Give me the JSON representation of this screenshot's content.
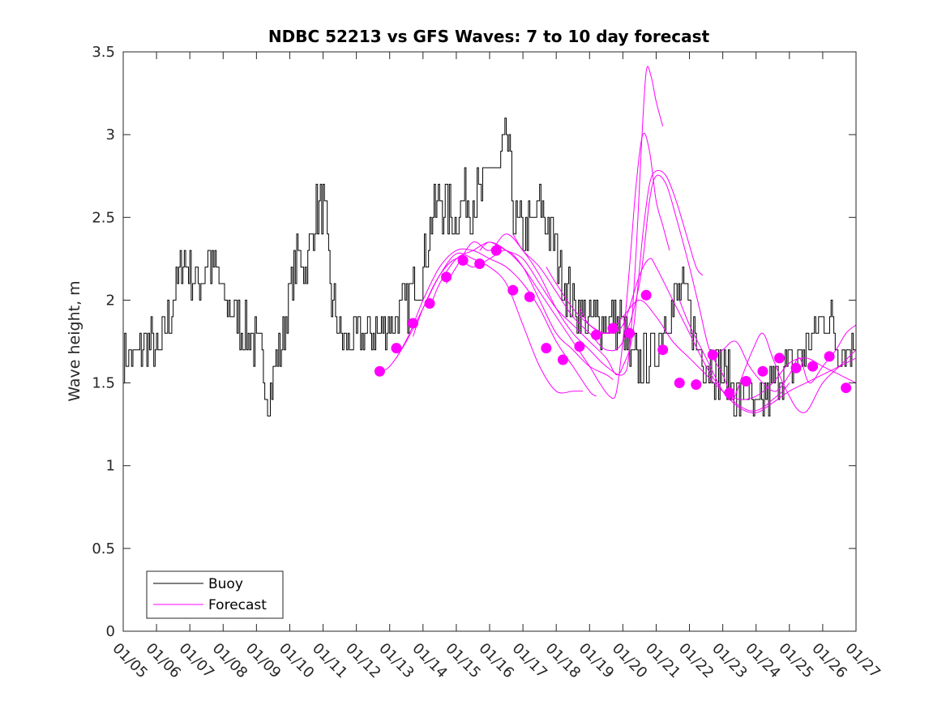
{
  "chart_data": {
    "type": "line",
    "title": "NDBC 52213 vs GFS Waves: 7 to 10 day forecast",
    "xlabel": "",
    "ylabel": "Wave height, m",
    "xlim": [
      0,
      22
    ],
    "ylim": [
      0,
      3.5
    ],
    "x_ticks": [
      "01/05",
      "01/06",
      "01/07",
      "01/08",
      "01/09",
      "01/10",
      "01/11",
      "01/12",
      "01/13",
      "01/14",
      "01/15",
      "01/16",
      "01/17",
      "01/18",
      "01/19",
      "01/20",
      "01/21",
      "01/22",
      "01/23",
      "01/24",
      "01/25",
      "01/26",
      "01/27"
    ],
    "y_ticks": [
      0,
      0.5,
      1,
      1.5,
      2,
      2.5,
      3,
      3.5
    ],
    "y_tick_labels": [
      "0",
      "0.5",
      "1",
      "1.5",
      "2",
      "2.5",
      "3",
      "3.5"
    ],
    "colors": {
      "buoy": "#000000",
      "forecast": "#ff00ff"
    },
    "legend": {
      "position": "bottom-left",
      "entries": [
        {
          "label": "Buoy",
          "color": "#000000"
        },
        {
          "label": "Forecast",
          "color": "#ff00ff"
        }
      ]
    },
    "buoy_keypoints": [
      [
        0.0,
        1.7
      ],
      [
        0.25,
        1.65
      ],
      [
        0.5,
        1.7
      ],
      [
        0.75,
        1.75
      ],
      [
        1.0,
        1.65
      ],
      [
        1.25,
        1.8
      ],
      [
        1.5,
        2.0
      ],
      [
        1.75,
        2.25
      ],
      [
        2.0,
        2.2
      ],
      [
        2.25,
        2.05
      ],
      [
        2.5,
        2.25
      ],
      [
        2.75,
        2.2
      ],
      [
        3.0,
        2.0
      ],
      [
        3.25,
        1.95
      ],
      [
        3.5,
        1.85
      ],
      [
        3.75,
        1.8
      ],
      [
        4.0,
        1.7
      ],
      [
        4.2,
        1.6
      ],
      [
        4.35,
        1.45
      ],
      [
        4.5,
        1.55
      ],
      [
        4.75,
        1.75
      ],
      [
        5.0,
        2.05
      ],
      [
        5.25,
        2.3
      ],
      [
        5.5,
        2.2
      ],
      [
        5.75,
        2.5
      ],
      [
        6.0,
        2.6
      ],
      [
        6.25,
        2.0
      ],
      [
        6.5,
        1.8
      ],
      [
        6.75,
        1.75
      ],
      [
        7.0,
        1.75
      ],
      [
        7.25,
        1.8
      ],
      [
        7.5,
        1.8
      ],
      [
        7.75,
        1.8
      ],
      [
        8.0,
        1.85
      ],
      [
        8.25,
        1.9
      ],
      [
        8.5,
        1.95
      ],
      [
        8.75,
        2.1
      ],
      [
        9.0,
        2.2
      ],
      [
        9.25,
        2.45
      ],
      [
        9.5,
        2.6
      ],
      [
        9.75,
        2.55
      ],
      [
        10.0,
        2.5
      ],
      [
        10.25,
        2.6
      ],
      [
        10.5,
        2.6
      ],
      [
        10.75,
        2.65
      ],
      [
        11.0,
        2.8
      ],
      [
        11.25,
        2.75
      ],
      [
        11.5,
        3.0
      ],
      [
        11.75,
        2.5
      ],
      [
        12.0,
        2.4
      ],
      [
        12.25,
        2.45
      ],
      [
        12.5,
        2.55
      ],
      [
        12.75,
        2.45
      ],
      [
        13.0,
        2.3
      ],
      [
        13.25,
        2.1
      ],
      [
        13.5,
        2.0
      ],
      [
        13.75,
        1.9
      ],
      [
        14.0,
        1.85
      ],
      [
        14.25,
        1.9
      ],
      [
        14.5,
        1.85
      ],
      [
        14.75,
        1.9
      ],
      [
        15.0,
        1.85
      ],
      [
        15.25,
        1.6
      ],
      [
        15.5,
        1.65
      ],
      [
        15.75,
        1.65
      ],
      [
        16.0,
        1.7
      ],
      [
        16.25,
        1.9
      ],
      [
        16.5,
        1.95
      ],
      [
        16.75,
        2.05
      ],
      [
        17.0,
        1.95
      ],
      [
        17.25,
        1.7
      ],
      [
        17.5,
        1.65
      ],
      [
        17.75,
        1.6
      ],
      [
        18.0,
        1.55
      ],
      [
        18.25,
        1.5
      ],
      [
        18.5,
        1.4
      ],
      [
        18.75,
        1.45
      ],
      [
        19.0,
        1.3
      ],
      [
        19.25,
        1.4
      ],
      [
        19.5,
        1.5
      ],
      [
        19.75,
        1.55
      ],
      [
        20.0,
        1.6
      ],
      [
        20.25,
        1.65
      ],
      [
        20.5,
        1.7
      ],
      [
        20.75,
        1.8
      ],
      [
        21.0,
        1.9
      ],
      [
        21.25,
        1.85
      ],
      [
        21.5,
        1.7
      ],
      [
        21.75,
        1.7
      ],
      [
        22.0,
        1.75
      ]
    ],
    "forecast_series": [
      {
        "name": "Forecast",
        "points": [
          [
            7.7,
            1.57
          ],
          [
            8.0,
            1.6
          ],
          [
            8.5,
            1.75
          ],
          [
            9.0,
            1.95
          ],
          [
            9.5,
            2.15
          ],
          [
            10.0,
            2.28
          ],
          [
            10.5,
            2.25
          ],
          [
            11.0,
            2.2
          ],
          [
            11.5,
            2.1
          ],
          [
            12.0,
            1.85
          ],
          [
            12.5,
            1.6
          ],
          [
            13.0,
            1.45
          ],
          [
            13.5,
            1.45
          ],
          [
            13.8,
            1.45
          ]
        ]
      },
      {
        "name": "Forecast",
        "points": [
          [
            8.2,
            1.65
          ],
          [
            8.6,
            1.8
          ],
          [
            9.0,
            2.0
          ],
          [
            9.5,
            2.2
          ],
          [
            10.0,
            2.3
          ],
          [
            10.5,
            2.3
          ],
          [
            11.0,
            2.25
          ],
          [
            11.5,
            2.2
          ],
          [
            12.0,
            2.1
          ],
          [
            12.5,
            1.95
          ],
          [
            13.0,
            1.75
          ],
          [
            13.5,
            1.6
          ],
          [
            14.0,
            1.45
          ],
          [
            14.2,
            1.42
          ]
        ]
      },
      {
        "name": "Forecast",
        "points": [
          [
            8.7,
            1.78
          ],
          [
            9.0,
            1.95
          ],
          [
            9.5,
            2.15
          ],
          [
            10.0,
            2.25
          ],
          [
            10.5,
            2.2
          ],
          [
            11.0,
            2.25
          ],
          [
            11.5,
            2.3
          ],
          [
            12.0,
            2.2
          ],
          [
            12.5,
            2.0
          ],
          [
            13.0,
            1.8
          ],
          [
            13.5,
            1.7
          ],
          [
            14.0,
            1.6
          ],
          [
            14.5,
            1.55
          ],
          [
            14.7,
            1.52
          ]
        ]
      },
      {
        "name": "Forecast",
        "points": [
          [
            9.2,
            1.95
          ],
          [
            9.5,
            2.1
          ],
          [
            10.0,
            2.25
          ],
          [
            10.5,
            2.3
          ],
          [
            11.0,
            2.35
          ],
          [
            11.5,
            2.3
          ],
          [
            12.0,
            2.2
          ],
          [
            12.5,
            2.05
          ],
          [
            13.0,
            1.9
          ],
          [
            13.5,
            1.75
          ],
          [
            14.0,
            1.6
          ],
          [
            14.3,
            1.5
          ],
          [
            14.6,
            1.42
          ],
          [
            14.8,
            1.44
          ],
          [
            15.0,
            1.75
          ],
          [
            15.2,
            2.2
          ],
          [
            15.4,
            2.7
          ],
          [
            15.6,
            3.0
          ],
          [
            15.8,
            2.9
          ],
          [
            16.0,
            2.6
          ],
          [
            16.2,
            2.45
          ],
          [
            16.4,
            2.3
          ]
        ]
      },
      {
        "name": "Forecast",
        "points": [
          [
            9.7,
            2.1
          ],
          [
            10.0,
            2.2
          ],
          [
            10.5,
            2.35
          ],
          [
            11.0,
            2.3
          ],
          [
            11.5,
            2.4
          ],
          [
            12.0,
            2.3
          ],
          [
            12.5,
            2.15
          ],
          [
            13.0,
            1.95
          ],
          [
            13.5,
            1.8
          ],
          [
            14.0,
            1.7
          ],
          [
            14.5,
            1.6
          ],
          [
            15.0,
            1.55
          ],
          [
            15.2,
            1.7
          ],
          [
            15.4,
            2.3
          ],
          [
            15.55,
            2.9
          ],
          [
            15.7,
            3.38
          ],
          [
            15.85,
            3.35
          ],
          [
            16.0,
            3.2
          ],
          [
            16.2,
            3.05
          ]
        ]
      },
      {
        "name": "Forecast",
        "points": [
          [
            10.7,
            2.3
          ],
          [
            11.0,
            2.35
          ],
          [
            11.5,
            2.3
          ],
          [
            12.0,
            2.25
          ],
          [
            12.5,
            2.1
          ],
          [
            13.0,
            1.95
          ],
          [
            13.5,
            1.85
          ],
          [
            14.0,
            1.75
          ],
          [
            14.5,
            1.65
          ],
          [
            14.8,
            1.55
          ],
          [
            15.0,
            1.6
          ],
          [
            15.3,
            1.8
          ],
          [
            15.6,
            2.4
          ],
          [
            15.8,
            2.7
          ],
          [
            16.0,
            2.78
          ],
          [
            16.3,
            2.75
          ],
          [
            16.6,
            2.6
          ],
          [
            16.9,
            2.4
          ],
          [
            17.2,
            2.2
          ],
          [
            17.4,
            2.15
          ]
        ]
      },
      {
        "name": "Forecast",
        "points": [
          [
            11.7,
            2.4
          ],
          [
            12.0,
            2.3
          ],
          [
            12.5,
            2.2
          ],
          [
            13.0,
            2.05
          ],
          [
            13.5,
            1.9
          ],
          [
            14.0,
            1.8
          ],
          [
            14.5,
            1.7
          ],
          [
            15.0,
            1.75
          ],
          [
            15.5,
            2.1
          ],
          [
            15.8,
            2.6
          ],
          [
            16.0,
            2.75
          ],
          [
            16.3,
            2.7
          ],
          [
            16.6,
            2.5
          ],
          [
            17.0,
            2.2
          ],
          [
            17.3,
            1.95
          ],
          [
            17.6,
            1.7
          ],
          [
            18.0,
            1.55
          ],
          [
            18.3,
            1.4
          ],
          [
            18.6,
            1.35
          ],
          [
            18.9,
            1.33
          ],
          [
            19.2,
            1.35
          ],
          [
            19.5,
            1.4
          ],
          [
            19.8,
            1.45
          ],
          [
            20.0,
            1.5
          ]
        ]
      },
      {
        "name": "Forecast",
        "points": [
          [
            12.7,
            2.2
          ],
          [
            13.0,
            2.1
          ],
          [
            13.5,
            1.95
          ],
          [
            14.0,
            1.85
          ],
          [
            14.5,
            1.8
          ],
          [
            15.0,
            1.85
          ],
          [
            15.5,
            2.15
          ],
          [
            15.8,
            2.25
          ],
          [
            16.0,
            2.2
          ],
          [
            16.5,
            2.0
          ],
          [
            17.0,
            1.8
          ],
          [
            17.5,
            1.6
          ],
          [
            18.0,
            1.45
          ],
          [
            18.5,
            1.35
          ],
          [
            19.0,
            1.32
          ],
          [
            19.5,
            1.38
          ],
          [
            20.0,
            1.45
          ],
          [
            20.5,
            1.5
          ],
          [
            21.0,
            1.55
          ],
          [
            21.5,
            1.6
          ],
          [
            22.0,
            1.65
          ]
        ]
      },
      {
        "name": "Forecast",
        "points": [
          [
            13.7,
            1.95
          ],
          [
            14.0,
            1.85
          ],
          [
            14.5,
            1.8
          ],
          [
            15.0,
            1.9
          ],
          [
            15.5,
            2.0
          ],
          [
            16.0,
            1.9
          ],
          [
            16.5,
            1.75
          ],
          [
            17.0,
            1.65
          ],
          [
            17.5,
            1.55
          ],
          [
            18.0,
            1.45
          ],
          [
            18.5,
            1.4
          ],
          [
            19.0,
            1.42
          ],
          [
            19.5,
            1.5
          ],
          [
            20.0,
            1.62
          ],
          [
            20.5,
            1.65
          ],
          [
            21.0,
            1.6
          ],
          [
            21.5,
            1.55
          ],
          [
            22.0,
            1.5
          ]
        ]
      },
      {
        "name": "Forecast",
        "points": [
          [
            16.7,
            2.0
          ],
          [
            17.0,
            1.85
          ],
          [
            17.5,
            1.65
          ],
          [
            18.0,
            1.45
          ],
          [
            18.3,
            1.4
          ],
          [
            18.6,
            1.55
          ],
          [
            18.9,
            1.7
          ],
          [
            19.2,
            1.8
          ],
          [
            19.5,
            1.65
          ],
          [
            19.8,
            1.5
          ],
          [
            20.0,
            1.42
          ],
          [
            20.2,
            1.35
          ],
          [
            20.4,
            1.32
          ],
          [
            20.6,
            1.35
          ],
          [
            21.0,
            1.5
          ],
          [
            21.5,
            1.6
          ],
          [
            22.0,
            1.7
          ]
        ]
      },
      {
        "name": "Forecast",
        "points": [
          [
            17.7,
            1.65
          ],
          [
            18.0,
            1.7
          ],
          [
            18.4,
            1.75
          ],
          [
            18.8,
            1.6
          ],
          [
            19.2,
            1.5
          ],
          [
            19.6,
            1.45
          ],
          [
            20.0,
            1.55
          ],
          [
            20.3,
            1.65
          ],
          [
            20.6,
            1.5
          ],
          [
            21.0,
            1.6
          ],
          [
            21.4,
            1.7
          ],
          [
            21.7,
            1.8
          ],
          [
            22.0,
            1.85
          ]
        ]
      }
    ],
    "forecast_markers": [
      [
        7.7,
        1.57
      ],
      [
        8.2,
        1.71
      ],
      [
        8.7,
        1.86
      ],
      [
        9.2,
        1.98
      ],
      [
        9.7,
        2.14
      ],
      [
        10.2,
        2.24
      ],
      [
        10.7,
        2.22
      ],
      [
        11.2,
        2.3
      ],
      [
        11.7,
        2.06
      ],
      [
        12.2,
        2.02
      ],
      [
        12.7,
        1.71
      ],
      [
        13.2,
        1.64
      ],
      [
        13.7,
        1.72
      ],
      [
        14.2,
        1.79
      ],
      [
        14.7,
        1.83
      ],
      [
        15.2,
        1.8
      ],
      [
        15.7,
        2.03
      ],
      [
        16.2,
        1.7
      ],
      [
        16.7,
        1.5
      ],
      [
        17.2,
        1.49
      ],
      [
        17.7,
        1.67
      ],
      [
        18.2,
        1.44
      ],
      [
        18.7,
        1.51
      ],
      [
        19.2,
        1.57
      ],
      [
        19.7,
        1.65
      ],
      [
        20.2,
        1.59
      ],
      [
        20.7,
        1.6
      ],
      [
        21.2,
        1.66
      ],
      [
        21.7,
        1.47
      ]
    ]
  }
}
